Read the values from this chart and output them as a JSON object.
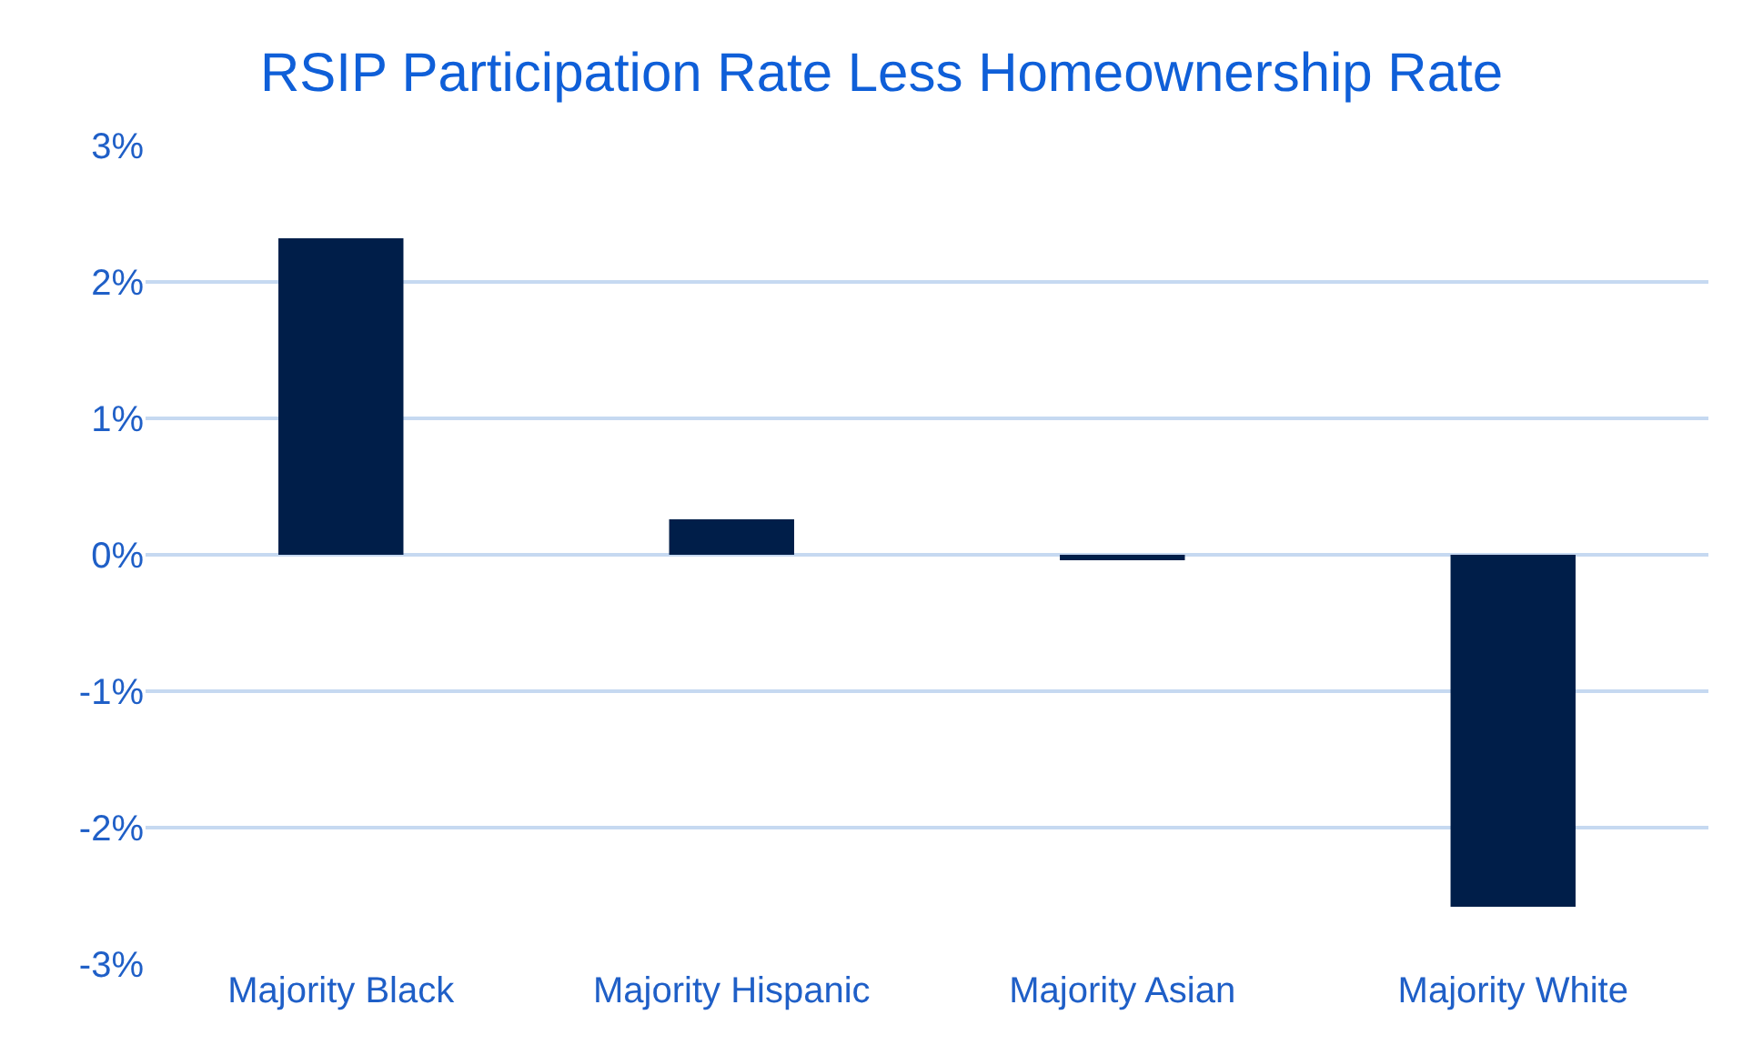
{
  "chart_data": {
    "type": "bar",
    "title": "RSIP Participation Rate Less Homeownership Rate",
    "categories": [
      "Majority Black",
      "Majority Hispanic",
      "Majority Asian",
      "Majority White"
    ],
    "values": [
      2.32,
      0.26,
      -0.04,
      -2.58
    ],
    "color": "#001e49",
    "ylim": [
      -3,
      3
    ],
    "yticks": [
      {
        "value": -3,
        "label": "-3%"
      },
      {
        "value": -2,
        "label": "-2%"
      },
      {
        "value": -1,
        "label": "-1%"
      },
      {
        "value": 0,
        "label": "0%"
      },
      {
        "value": 1,
        "label": "1%"
      },
      {
        "value": 2,
        "label": "2%"
      },
      {
        "value": 3,
        "label": "3%"
      }
    ],
    "grid": "y",
    "legend": false
  }
}
